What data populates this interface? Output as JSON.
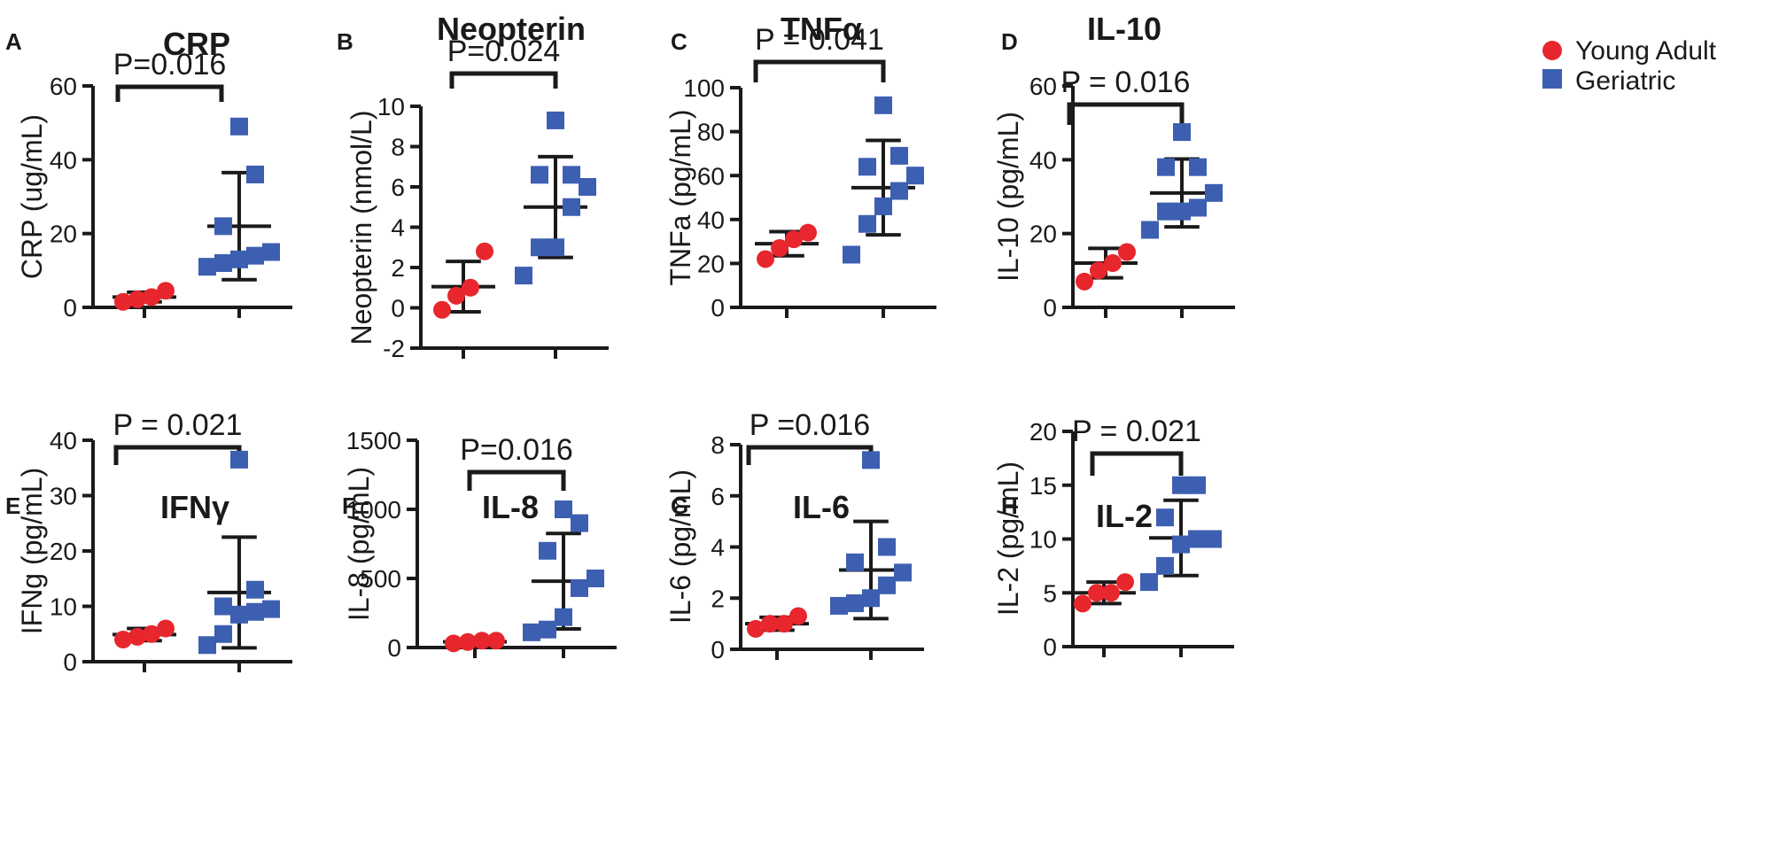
{
  "legend": {
    "items": [
      {
        "label": "Young Adult",
        "color": "#e8262d",
        "marker": "circle"
      },
      {
        "label": "Geriatric",
        "color": "#3d5fb2",
        "marker": "square"
      }
    ]
  },
  "chart_data": [
    {
      "type": "scatter",
      "panel": "A",
      "title": "CRP",
      "ylabel": "CRP (ug/mL)",
      "ylim": [
        0,
        60
      ],
      "yticks": [
        0,
        20,
        40,
        60
      ],
      "categories": [
        "Young Adult",
        "Geriatric"
      ],
      "pvalue": "P=0.016",
      "series": [
        {
          "name": "Young Adult",
          "values": [
            1.5,
            2.2,
            2.8,
            4.5
          ],
          "mean": 2.8,
          "sd": 1.3
        },
        {
          "name": "Geriatric",
          "values": [
            11,
            12,
            13,
            14,
            15,
            22,
            36,
            49
          ],
          "mean": 22,
          "sd": 14.5
        }
      ]
    },
    {
      "type": "scatter",
      "panel": "B",
      "title": "Neopterin",
      "ylabel": "Neopterin (nmol/L)",
      "ylim": [
        -2,
        10
      ],
      "yticks": [
        -2,
        0,
        2,
        4,
        6,
        8,
        10
      ],
      "categories": [
        "Young Adult",
        "Geriatric"
      ],
      "pvalue": "P=0.024",
      "series": [
        {
          "name": "Young Adult",
          "values": [
            -0.1,
            0.6,
            1.0,
            2.8
          ],
          "mean": 1.05,
          "sd": 1.25
        },
        {
          "name": "Geriatric",
          "values": [
            1.6,
            3.0,
            3.0,
            5.0,
            6.0,
            6.6,
            6.6,
            9.3
          ],
          "mean": 5.0,
          "sd": 2.5
        }
      ]
    },
    {
      "type": "scatter",
      "panel": "C",
      "title": "TNFα",
      "ylabel": "TNFa (pg/mL)",
      "ylim": [
        0,
        100
      ],
      "yticks": [
        0,
        20,
        40,
        60,
        80,
        100
      ],
      "categories": [
        "Young Adult",
        "Geriatric"
      ],
      "pvalue": "P = 0.041",
      "series": [
        {
          "name": "Young Adult",
          "values": [
            22,
            27,
            31,
            34
          ],
          "mean": 29,
          "sd": 5.5
        },
        {
          "name": "Geriatric",
          "values": [
            24,
            38,
            46,
            53,
            60,
            64,
            69,
            92
          ],
          "mean": 54.5,
          "sd": 21.5
        }
      ]
    },
    {
      "type": "scatter",
      "panel": "D",
      "title": "IL-10",
      "ylabel": "IL-10 (pg/mL)",
      "ylim": [
        0,
        60
      ],
      "yticks": [
        0,
        20,
        40,
        60
      ],
      "categories": [
        "Young Adult",
        "Geriatric"
      ],
      "pvalue": "P = 0.016",
      "series": [
        {
          "name": "Young Adult",
          "values": [
            7,
            10,
            12,
            15
          ],
          "mean": 12,
          "sd": 4
        },
        {
          "name": "Geriatric",
          "values": [
            21,
            26,
            26,
            27,
            31,
            38,
            38,
            47.5
          ],
          "mean": 31,
          "sd": 9.2
        }
      ]
    },
    {
      "type": "scatter",
      "panel": "E",
      "title": "IFNγ",
      "ylabel": "IFNg (pg/mL)",
      "ylim": [
        0,
        40
      ],
      "yticks": [
        0,
        10,
        20,
        30,
        40
      ],
      "categories": [
        "Young Adult",
        "Geriatric"
      ],
      "pvalue": "P = 0.021",
      "series": [
        {
          "name": "Young Adult",
          "values": [
            4,
            4.5,
            5,
            6
          ],
          "mean": 4.9,
          "sd": 1.1
        },
        {
          "name": "Geriatric",
          "values": [
            3,
            5,
            8.5,
            9,
            9.5,
            10,
            13,
            36.5
          ],
          "mean": 12.5,
          "sd": 10
        },
        {
          "name": "_",
          "values": []
        }
      ]
    },
    {
      "type": "scatter",
      "panel": "F",
      "title": "IL-8",
      "ylabel": "IL-8 (pg/mL)",
      "ylim": [
        0,
        1500
      ],
      "yticks": [
        0,
        500,
        1000,
        1500
      ],
      "categories": [
        "Young Adult",
        "Geriatric"
      ],
      "pvalue": "P=0.016",
      "series": [
        {
          "name": "Young Adult",
          "values": [
            30,
            40,
            50,
            50
          ],
          "mean": 42,
          "sd": 10
        },
        {
          "name": "Geriatric",
          "values": [
            110,
            130,
            220,
            430,
            500,
            700,
            900,
            1000
          ],
          "mean": 480,
          "sd": 345
        }
      ]
    },
    {
      "type": "scatter",
      "panel": "G",
      "title": "IL-6",
      "ylabel": "IL-6 (pg/mL)",
      "ylim": [
        0,
        8
      ],
      "yticks": [
        0,
        2,
        4,
        6,
        8
      ],
      "categories": [
        "Young Adult",
        "Geriatric"
      ],
      "pvalue": "P =0.016",
      "series": [
        {
          "name": "Young Adult",
          "values": [
            0.8,
            1.0,
            1.0,
            1.3
          ],
          "mean": 1.0,
          "sd": 0.25
        },
        {
          "name": "Geriatric",
          "values": [
            1.7,
            1.8,
            2.0,
            2.5,
            3.0,
            3.4,
            4.0,
            7.4
          ],
          "mean": 3.1,
          "sd": 1.9
        }
      ]
    },
    {
      "type": "scatter",
      "panel": "H",
      "title": "IL-2",
      "ylabel": "IL-2 (pg/mL)",
      "ylim": [
        0,
        20
      ],
      "yticks": [
        0,
        5,
        10,
        15,
        20
      ],
      "categories": [
        "Young Adult",
        "Geriatric"
      ],
      "pvalue": "P = 0.021",
      "series": [
        {
          "name": "Young Adult",
          "values": [
            4,
            5,
            5,
            6
          ],
          "mean": 5,
          "sd": 1
        },
        {
          "name": "Geriatric",
          "values": [
            6,
            7.5,
            9.5,
            10,
            10,
            12,
            15,
            15
          ],
          "mean": 10.1,
          "sd": 3.5
        }
      ]
    }
  ]
}
